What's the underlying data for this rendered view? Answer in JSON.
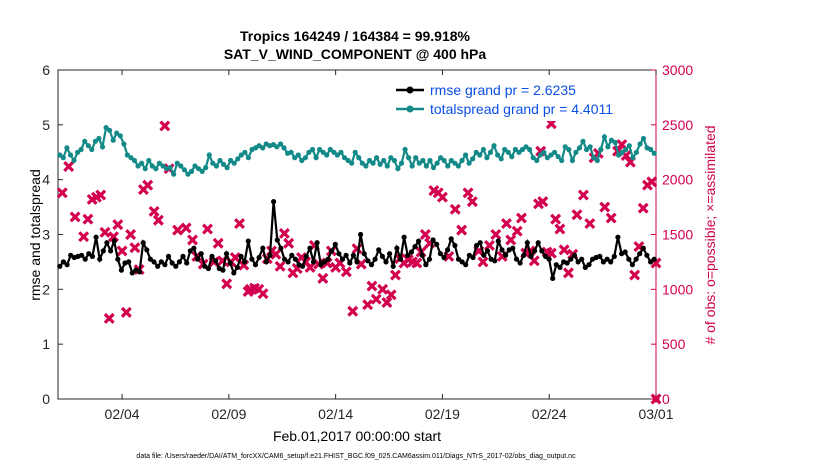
{
  "chart_data": {
    "type": "line",
    "title": "Tropics 164249 / 164384 = 99.918%",
    "subtitle": "SAT_V_WIND_COMPONENT @ 400 hPa",
    "xlabel": "Feb.01,2017 00:00:00 start",
    "ylabel": "rmse and totalspread",
    "y2label": "# of obs: o=possible; ×=assimilated",
    "footnote": "data file: /Users/raeder/DAI/ATM_forcXX/CAM6_setup/f.e21.FHIST_BGC.f09_025.CAM6assim.011/Diags_NTrS_2017-02/obs_diag_output.nc",
    "xlim": [
      0,
      28
    ],
    "ylim": [
      0,
      6
    ],
    "y2lim": [
      0,
      3000
    ],
    "x_ticks": [
      3,
      8,
      13,
      18,
      23,
      28
    ],
    "x_tick_labels": [
      "02/04",
      "02/09",
      "02/14",
      "02/19",
      "02/24",
      "03/01"
    ],
    "y_ticks": [
      0,
      1,
      2,
      3,
      4,
      5,
      6
    ],
    "y2_ticks": [
      0,
      500,
      1000,
      1500,
      2000,
      2500,
      3000
    ],
    "colors": {
      "rmse": "#000000",
      "spread": "#138a88",
      "obs": "#d2004f",
      "legend_text": "#0a4fe6"
    },
    "series": [
      {
        "name": "rmse grand pr = 2.6235",
        "axis": "left",
        "values": [
          2.42,
          2.5,
          2.45,
          2.62,
          2.58,
          2.6,
          2.62,
          2.55,
          2.65,
          2.6,
          2.95,
          2.55,
          2.7,
          2.85,
          2.7,
          2.88,
          2.55,
          2.35,
          2.48,
          2.5,
          2.3,
          2.35,
          2.32,
          2.85,
          2.72,
          2.55,
          2.5,
          2.42,
          2.5,
          2.45,
          2.6,
          2.48,
          2.42,
          2.5,
          2.6,
          2.48,
          2.7,
          2.75,
          2.55,
          2.65,
          2.42,
          2.38,
          2.6,
          2.52,
          2.38,
          2.35,
          2.65,
          2.48,
          2.3,
          2.4,
          2.6,
          2.5,
          2.88,
          2.55,
          2.45,
          2.58,
          2.75,
          2.5,
          2.62,
          3.6,
          2.9,
          2.75,
          2.55,
          2.5,
          2.62,
          2.55,
          2.45,
          2.42,
          2.6,
          2.75,
          2.5,
          2.85,
          2.45,
          2.5,
          2.55,
          2.7,
          2.82,
          2.65,
          2.55,
          2.62,
          2.48,
          2.62,
          2.5,
          3.0,
          2.65,
          2.52,
          2.45,
          2.55,
          2.72,
          2.6,
          2.5,
          2.65,
          2.42,
          2.75,
          2.55,
          2.95,
          2.62,
          2.68,
          2.78,
          2.88,
          2.62,
          2.45,
          2.55,
          2.9,
          2.82,
          2.65,
          2.58,
          2.72,
          2.92,
          2.8,
          2.55,
          2.5,
          2.45,
          2.62,
          2.58,
          2.8,
          2.85,
          2.62,
          2.7,
          2.55,
          2.52,
          2.88,
          2.72,
          2.62,
          2.72,
          2.75,
          2.55,
          2.48,
          2.62,
          2.85,
          2.6,
          2.7,
          2.85,
          2.7,
          2.6,
          2.55,
          2.2,
          2.45,
          2.4,
          2.5,
          2.48,
          2.55,
          2.62,
          2.5,
          2.55,
          2.4,
          2.45,
          2.55,
          2.58,
          2.6,
          2.5,
          2.55,
          2.5,
          2.6,
          2.95,
          2.65,
          2.68,
          2.55,
          2.45,
          2.55,
          2.65,
          2.75,
          2.62,
          2.5,
          2.55
        ]
      },
      {
        "name": "totalspread grand pr = 4.4011",
        "axis": "left",
        "values": [
          4.45,
          4.4,
          4.58,
          4.45,
          4.35,
          4.5,
          4.55,
          4.7,
          4.62,
          4.55,
          4.7,
          4.75,
          4.6,
          4.95,
          4.9,
          4.72,
          4.85,
          4.8,
          4.65,
          4.45,
          4.4,
          4.35,
          4.25,
          4.3,
          4.2,
          4.35,
          4.25,
          4.2,
          4.3,
          4.25,
          4.2,
          4.22,
          4.1,
          4.3,
          4.25,
          4.18,
          4.1,
          4.15,
          4.25,
          4.2,
          4.15,
          4.22,
          4.45,
          4.3,
          4.25,
          4.35,
          4.28,
          4.22,
          4.35,
          4.3,
          4.38,
          4.45,
          4.5,
          4.4,
          4.55,
          4.58,
          4.62,
          4.58,
          4.65,
          4.62,
          4.64,
          4.6,
          4.65,
          4.58,
          4.48,
          4.5,
          4.4,
          4.45,
          4.35,
          4.4,
          4.5,
          4.55,
          4.4,
          4.55,
          4.5,
          4.45,
          4.55,
          4.5,
          4.45,
          4.5,
          4.4,
          4.35,
          4.3,
          4.5,
          4.4,
          4.3,
          4.25,
          4.35,
          4.3,
          4.4,
          4.28,
          4.35,
          4.25,
          4.4,
          4.35,
          4.2,
          4.3,
          4.55,
          4.4,
          4.25,
          4.4,
          4.3,
          4.35,
          4.25,
          4.35,
          4.22,
          4.3,
          4.4,
          4.35,
          4.25,
          4.35,
          4.3,
          4.25,
          4.35,
          4.45,
          4.3,
          4.38,
          4.5,
          4.45,
          4.55,
          4.4,
          4.5,
          4.62,
          4.45,
          4.38,
          4.55,
          4.5,
          4.42,
          4.55,
          4.5,
          4.55,
          4.6,
          4.55,
          4.4,
          4.35,
          4.45,
          4.5,
          4.4,
          4.45,
          4.5,
          4.42,
          4.35,
          4.6,
          4.55,
          4.35,
          4.5,
          4.58,
          4.7,
          4.55,
          4.6,
          4.4,
          4.35,
          4.55,
          4.78,
          4.6,
          4.72,
          4.68,
          4.45,
          4.5,
          4.55,
          4.62,
          4.4,
          4.5,
          4.65,
          4.75,
          4.58,
          4.55,
          4.48
        ]
      },
      {
        "name": "# of obs assimilated",
        "axis": "right",
        "marker": "x",
        "points": [
          [
            0.2,
            1880
          ],
          [
            0.5,
            2120
          ],
          [
            0.8,
            1660
          ],
          [
            1.2,
            1480
          ],
          [
            1.4,
            1640
          ],
          [
            1.6,
            1820
          ],
          [
            1.8,
            1840
          ],
          [
            2.0,
            1860
          ],
          [
            2.2,
            1520
          ],
          [
            2.4,
            735
          ],
          [
            2.6,
            1480
          ],
          [
            2.8,
            1590
          ],
          [
            3.0,
            1350
          ],
          [
            3.2,
            790
          ],
          [
            3.4,
            1500
          ],
          [
            3.6,
            1380
          ],
          [
            3.8,
            1180
          ],
          [
            4.0,
            1910
          ],
          [
            4.2,
            1950
          ],
          [
            4.5,
            1710
          ],
          [
            4.7,
            1630
          ],
          [
            5.0,
            2490
          ],
          [
            5.2,
            2100
          ],
          [
            5.6,
            1540
          ],
          [
            6.0,
            1560
          ],
          [
            6.3,
            1450
          ],
          [
            6.5,
            1300
          ],
          [
            6.8,
            1230
          ],
          [
            7.0,
            1550
          ],
          [
            7.3,
            1250
          ],
          [
            7.5,
            1420
          ],
          [
            7.7,
            1260
          ],
          [
            7.9,
            1050
          ],
          [
            8.1,
            1250
          ],
          [
            8.3,
            1290
          ],
          [
            8.5,
            1600
          ],
          [
            8.7,
            1220
          ],
          [
            8.9,
            980
          ],
          [
            9.0,
            1000
          ],
          [
            9.2,
            1010
          ],
          [
            9.4,
            1000
          ],
          [
            9.6,
            960
          ],
          [
            9.8,
            1280
          ],
          [
            10.0,
            1350
          ],
          [
            10.2,
            1320
          ],
          [
            10.4,
            1210
          ],
          [
            10.6,
            1510
          ],
          [
            10.8,
            1420
          ],
          [
            11.0,
            1150
          ],
          [
            11.2,
            1190
          ],
          [
            11.4,
            1290
          ],
          [
            11.6,
            1250
          ],
          [
            11.8,
            1200
          ],
          [
            12.0,
            1400
          ],
          [
            12.2,
            1230
          ],
          [
            12.4,
            1100
          ],
          [
            12.6,
            1240
          ],
          [
            12.8,
            1350
          ],
          [
            13.0,
            1200
          ],
          [
            13.2,
            1240
          ],
          [
            13.5,
            1160
          ],
          [
            13.8,
            800
          ],
          [
            14.0,
            1370
          ],
          [
            14.2,
            1230
          ],
          [
            14.5,
            860
          ],
          [
            14.7,
            1030
          ],
          [
            14.9,
            910
          ],
          [
            15.2,
            1000
          ],
          [
            15.4,
            880
          ],
          [
            15.6,
            950
          ],
          [
            15.8,
            1130
          ],
          [
            16.0,
            1280
          ],
          [
            16.2,
            1240
          ],
          [
            16.4,
            1270
          ],
          [
            16.6,
            1250
          ],
          [
            16.8,
            1240
          ],
          [
            17.0,
            1340
          ],
          [
            17.2,
            1500
          ],
          [
            17.4,
            1420
          ],
          [
            17.6,
            1900
          ],
          [
            17.8,
            1880
          ],
          [
            18.0,
            1840
          ],
          [
            18.3,
            1300
          ],
          [
            18.6,
            1730
          ],
          [
            18.9,
            1540
          ],
          [
            19.2,
            1880
          ],
          [
            19.4,
            1800
          ],
          [
            19.7,
            1350
          ],
          [
            19.9,
            1250
          ],
          [
            20.2,
            1400
          ],
          [
            20.5,
            1500
          ],
          [
            20.8,
            1300
          ],
          [
            21.0,
            1600
          ],
          [
            21.2,
            1450
          ],
          [
            21.5,
            1530
          ],
          [
            21.7,
            1650
          ],
          [
            21.9,
            1330
          ],
          [
            22.1,
            1350
          ],
          [
            22.3,
            1260
          ],
          [
            22.5,
            1780
          ],
          [
            22.7,
            1800
          ],
          [
            22.9,
            1340
          ],
          [
            23.1,
            1330
          ],
          [
            23.3,
            1640
          ],
          [
            23.5,
            1550
          ],
          [
            23.7,
            1360
          ],
          [
            23.9,
            1150
          ],
          [
            24.1,
            1320
          ],
          [
            24.3,
            1680
          ],
          [
            24.6,
            1860
          ],
          [
            24.9,
            1600
          ],
          [
            25.1,
            2200
          ],
          [
            25.3,
            2240
          ],
          [
            25.6,
            1750
          ],
          [
            25.9,
            1650
          ],
          [
            26.2,
            2260
          ],
          [
            26.4,
            2320
          ],
          [
            26.6,
            2220
          ],
          [
            26.8,
            2160
          ],
          [
            27.0,
            1130
          ],
          [
            27.2,
            1390
          ],
          [
            27.4,
            1740
          ],
          [
            27.6,
            1950
          ],
          [
            27.8,
            1980
          ],
          [
            28.0,
            1240
          ]
        ]
      },
      {
        "name": "# of obs possible",
        "axis": "right",
        "marker": "o",
        "points": [
          [
            28.0,
            0
          ]
        ]
      }
    ],
    "extra_points": [
      {
        "x": 23.1,
        "y2": 2510
      },
      {
        "x": 22.6,
        "y2": 2260
      },
      {
        "x": 28.0,
        "y2": 0
      }
    ]
  }
}
